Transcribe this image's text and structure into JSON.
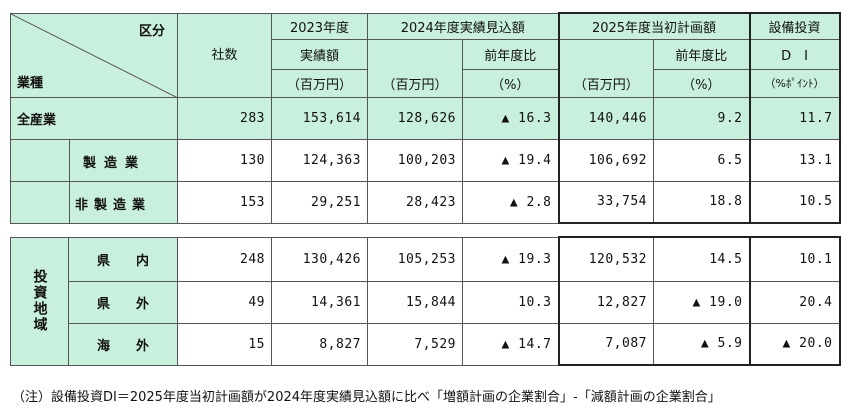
{
  "header": {
    "kubun": "区分",
    "gyoshu": "業種",
    "shasu": "社数",
    "y2023_line1": "2023年度",
    "y2023_line2": "実績額",
    "y2023_unit": "（百万円）",
    "y2024_title": "2024年度実績見込額",
    "y2024_unit": "（百万円）",
    "y2024_ratio": "前年度比",
    "y2024_ratio_unit": "（%）",
    "y2025_title": "2025年度当初計画額",
    "y2025_unit": "（百万円）",
    "y2025_ratio": "前年度比",
    "y2025_ratio_unit": "（%）",
    "di_line1": "設備投資",
    "di_line2": "D　I",
    "di_unit": "（%ﾎﾟｲﾝﾄ）"
  },
  "industry_rows": [
    {
      "label": "全産業",
      "shasu": "283",
      "y2023": "153,614",
      "y2024": "128,626",
      "y2024_ratio": "▲ 16.3",
      "y2025": "140,446",
      "y2025_ratio": "9.2",
      "di": "11.7"
    },
    {
      "label": "製造業",
      "shasu": "130",
      "y2023": "124,363",
      "y2024": "100,203",
      "y2024_ratio": "▲ 19.4",
      "y2025": "106,692",
      "y2025_ratio": "6.5",
      "di": "13.1"
    },
    {
      "label": "非製造業",
      "shasu": "153",
      "y2023": "29,251",
      "y2024": "28,423",
      "y2024_ratio": "▲ 2.8",
      "y2025": "33,754",
      "y2025_ratio": "18.8",
      "di": "10.5"
    }
  ],
  "region_group_label": "投資地域",
  "region_rows": [
    {
      "label": "県　　内",
      "shasu": "248",
      "y2023": "130,426",
      "y2024": "105,253",
      "y2024_ratio": "▲ 19.3",
      "y2025": "120,532",
      "y2025_ratio": "14.5",
      "di": "10.1"
    },
    {
      "label": "県　　外",
      "shasu": "49",
      "y2023": "14,361",
      "y2024": "15,844",
      "y2024_ratio": "10.3",
      "y2025": "12,827",
      "y2025_ratio": "▲ 19.0",
      "di": "20.4"
    },
    {
      "label": "海　　外",
      "shasu": "15",
      "y2023": "8,827",
      "y2024": "7,529",
      "y2024_ratio": "▲ 14.7",
      "y2025": "7,087",
      "y2025_ratio": "▲ 5.9",
      "di": "▲ 20.0"
    }
  ],
  "footnote": "（注）設備投資DI＝2025年度当初計画額が2024年度実績見込額に比べ「増額計画の企業割合」-「減額計画の企業割合」"
}
